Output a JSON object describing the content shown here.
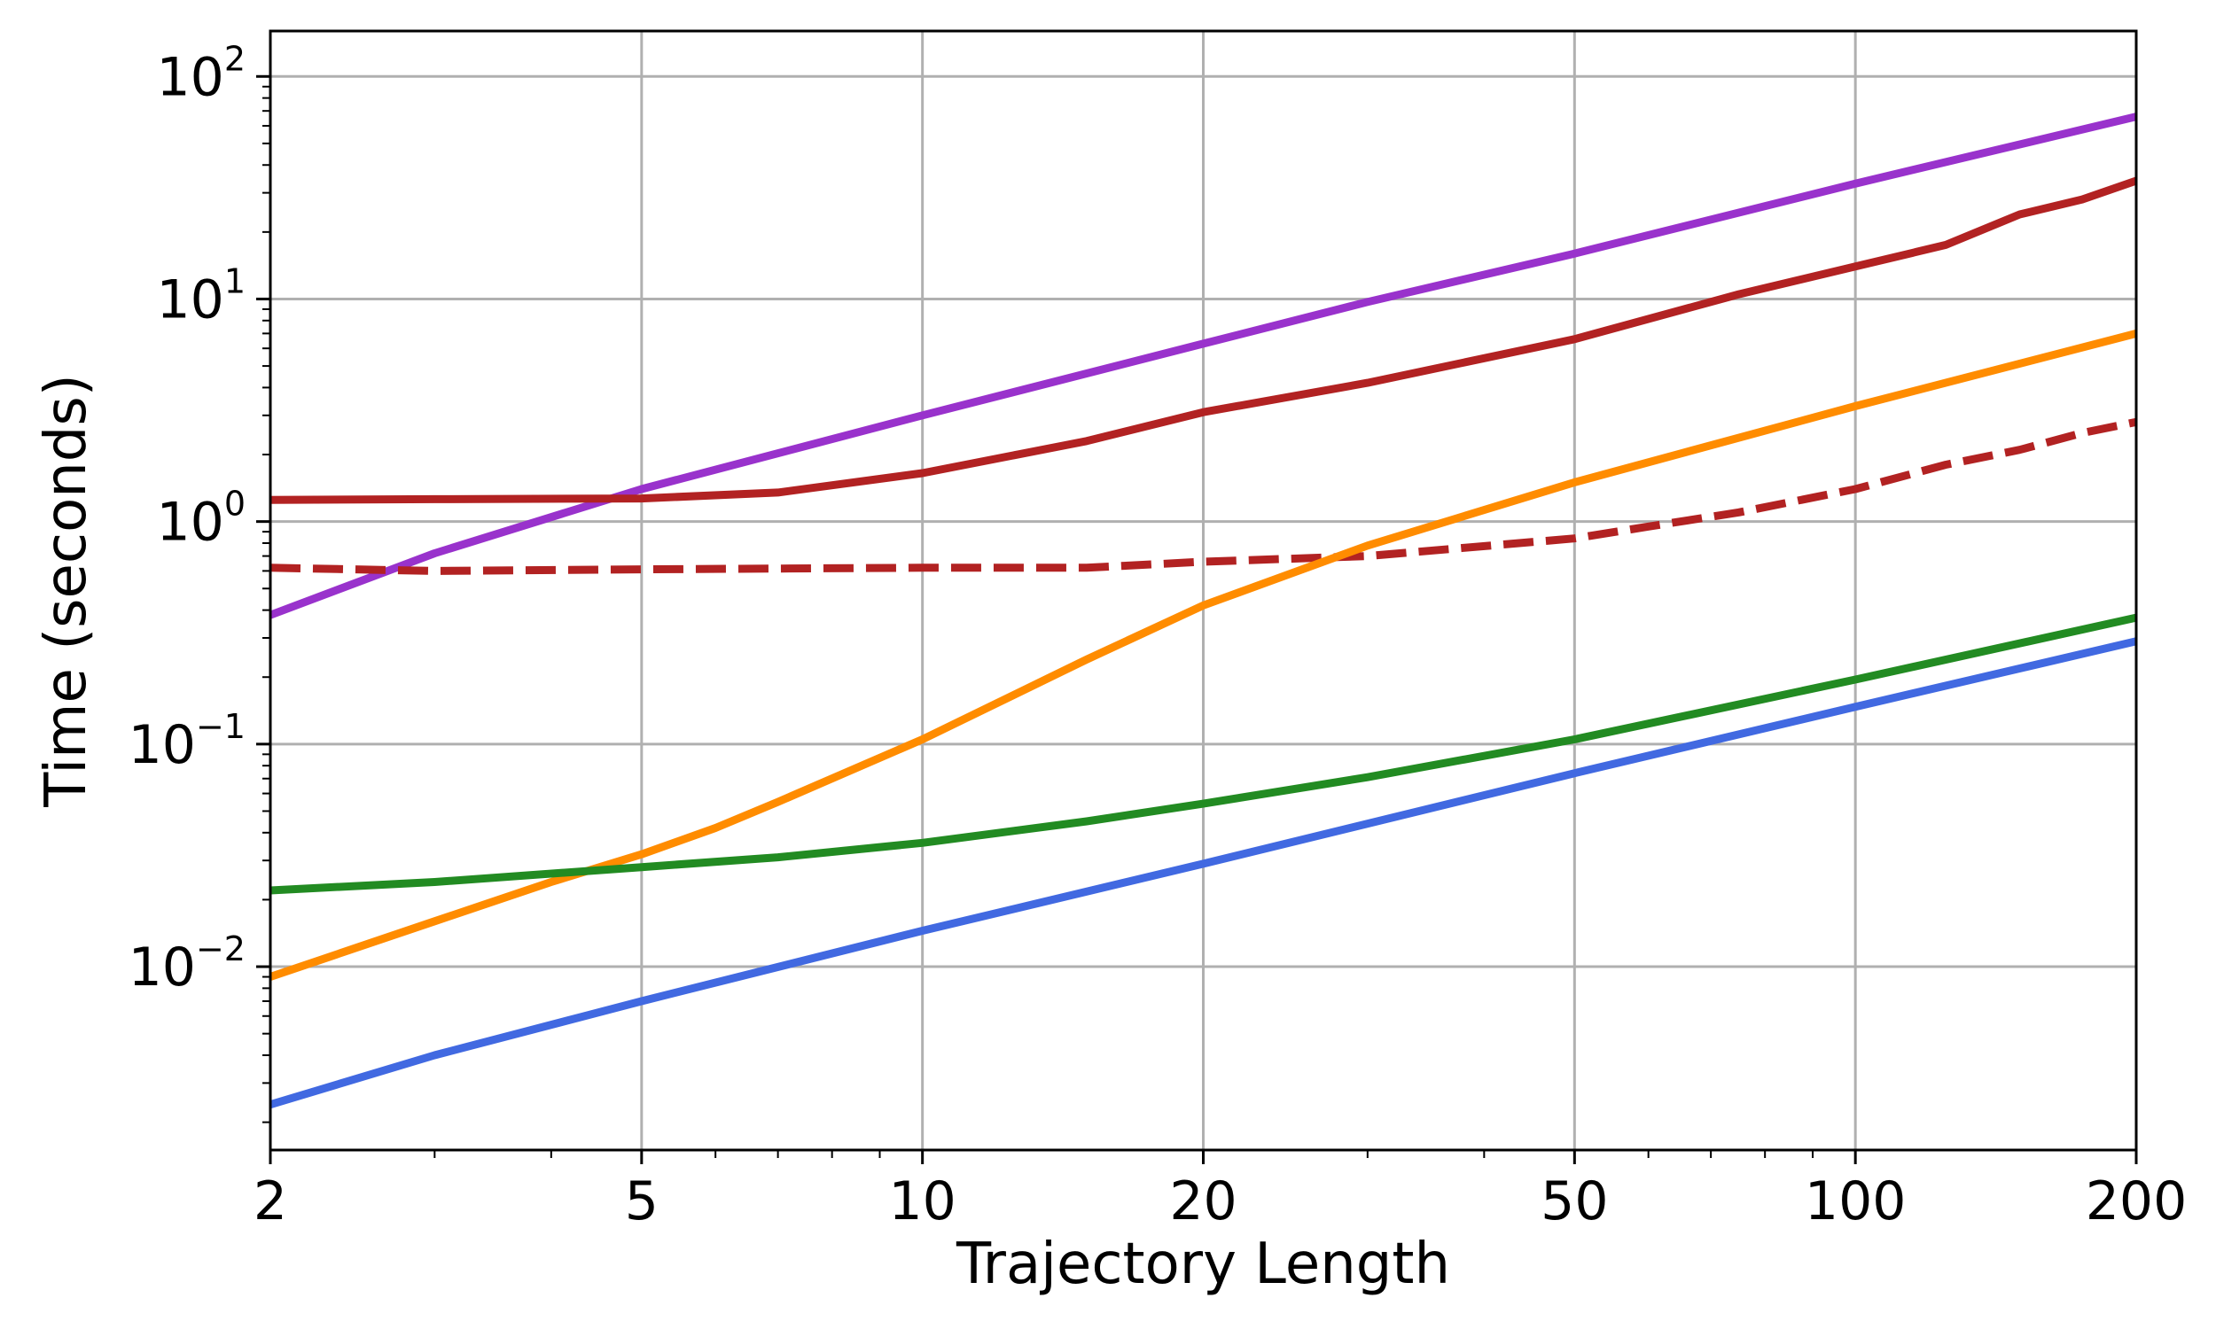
{
  "chart_data": {
    "type": "line",
    "xlabel": "Trajectory Length",
    "ylabel": "Time (seconds)",
    "xscale": "log",
    "yscale": "log",
    "xlim": [
      2,
      200
    ],
    "ylim": [
      0.0015,
      160
    ],
    "grid": true,
    "x_ticks": [
      {
        "value": 2,
        "label": "2"
      },
      {
        "value": 5,
        "label": "5"
      },
      {
        "value": 10,
        "label": "10"
      },
      {
        "value": 20,
        "label": "20"
      },
      {
        "value": 50,
        "label": "50"
      },
      {
        "value": 100,
        "label": "100"
      },
      {
        "value": 200,
        "label": "200"
      }
    ],
    "y_ticks": [
      {
        "value": 0.01,
        "base": "10",
        "exp": "−2"
      },
      {
        "value": 0.1,
        "base": "10",
        "exp": "−1"
      },
      {
        "value": 1,
        "base": "10",
        "exp": "0"
      },
      {
        "value": 10,
        "base": "10",
        "exp": "1"
      },
      {
        "value": 100,
        "base": "10",
        "exp": "2"
      }
    ],
    "series": [
      {
        "color": "#9932cc",
        "dash": "solid",
        "x": [
          2,
          3,
          5,
          10,
          20,
          30,
          50,
          100,
          200
        ],
        "y": [
          0.38,
          0.72,
          1.4,
          3.0,
          6.3,
          9.7,
          16.0,
          33.0,
          66.0
        ]
      },
      {
        "color": "#b22222",
        "dash": "solid",
        "x": [
          2,
          3,
          5,
          7,
          10,
          15,
          20,
          30,
          50,
          75,
          100,
          125,
          150,
          175,
          200
        ],
        "y": [
          1.25,
          1.26,
          1.27,
          1.35,
          1.65,
          2.3,
          3.1,
          4.2,
          6.6,
          10.5,
          14.0,
          17.5,
          24.0,
          28.0,
          34.0
        ]
      },
      {
        "color": "#b22222",
        "dash": "dashed",
        "x": [
          2,
          3,
          5,
          10,
          15,
          20,
          30,
          50,
          60,
          75,
          100,
          125,
          150,
          175,
          200
        ],
        "y": [
          0.62,
          0.6,
          0.61,
          0.62,
          0.62,
          0.66,
          0.7,
          0.84,
          0.95,
          1.1,
          1.4,
          1.8,
          2.1,
          2.5,
          2.8
        ]
      },
      {
        "color": "#ff8c00",
        "dash": "solid",
        "x": [
          2,
          3,
          4,
          5,
          6,
          7,
          10,
          15,
          20,
          30,
          50,
          100,
          200
        ],
        "y": [
          0.009,
          0.016,
          0.024,
          0.032,
          0.042,
          0.055,
          0.105,
          0.24,
          0.42,
          0.78,
          1.5,
          3.3,
          7.0
        ]
      },
      {
        "color": "#228b22",
        "dash": "solid",
        "x": [
          2,
          3,
          5,
          7,
          10,
          15,
          20,
          30,
          50,
          100,
          200
        ],
        "y": [
          0.022,
          0.024,
          0.028,
          0.031,
          0.036,
          0.045,
          0.054,
          0.071,
          0.105,
          0.195,
          0.37
        ]
      },
      {
        "color": "#4169e1",
        "dash": "solid",
        "x": [
          2,
          3,
          5,
          10,
          20,
          50,
          100,
          200
        ],
        "y": [
          0.0024,
          0.004,
          0.007,
          0.0145,
          0.029,
          0.074,
          0.147,
          0.29
        ]
      }
    ]
  }
}
